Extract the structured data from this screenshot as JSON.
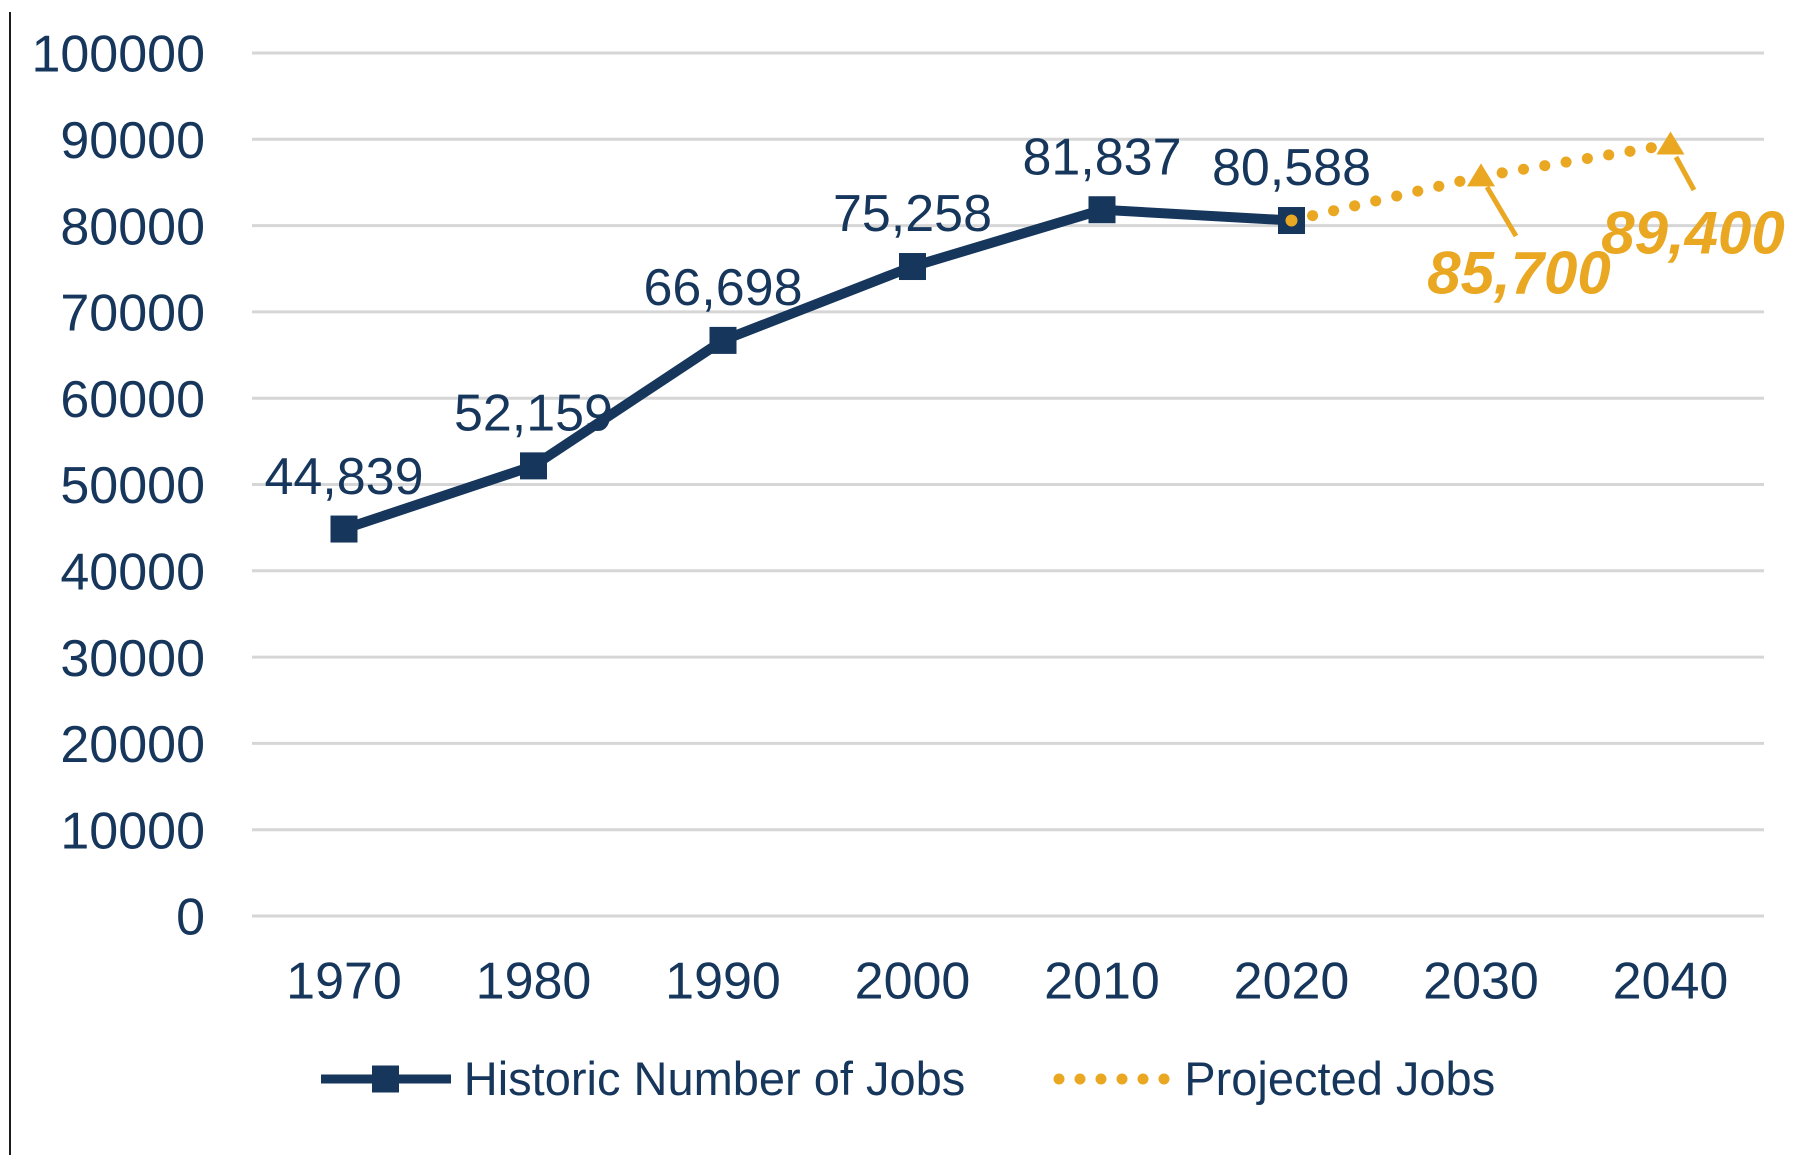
{
  "chart_data": {
    "type": "line",
    "x_categories": [
      "1970",
      "1980",
      "1990",
      "2000",
      "2010",
      "2020",
      "2030",
      "2040"
    ],
    "y_ticks": [
      "0",
      "10000",
      "20000",
      "30000",
      "40000",
      "50000",
      "60000",
      "70000",
      "80000",
      "90000",
      "100000"
    ],
    "ylim": [
      0,
      100000
    ],
    "y_tick_step": 10000,
    "grid": true,
    "legend_position": "bottom",
    "colors": {
      "historic": "#16365C",
      "projected": "#E9A722",
      "grid": "#D6D6D6",
      "background": "#FFFFFF"
    },
    "series": [
      {
        "name": "Historic Number of Jobs",
        "color": "#16365C",
        "line_style": "solid",
        "marker": "square",
        "x": [
          "1970",
          "1980",
          "1990",
          "2000",
          "2010",
          "2020"
        ],
        "values": [
          44839,
          52159,
          66698,
          75258,
          81837,
          80588
        ],
        "labels": [
          "44,839",
          "52,159",
          "66,698",
          "75,258",
          "81,837",
          "80,588"
        ]
      },
      {
        "name": "Projected Jobs",
        "color": "#E9A722",
        "line_style": "dotted",
        "marker": "triangle",
        "x": [
          "2020",
          "2030",
          "2040"
        ],
        "values": [
          80588,
          85700,
          89400
        ],
        "labels": [
          "",
          "85,700",
          "89,400"
        ]
      }
    ]
  }
}
